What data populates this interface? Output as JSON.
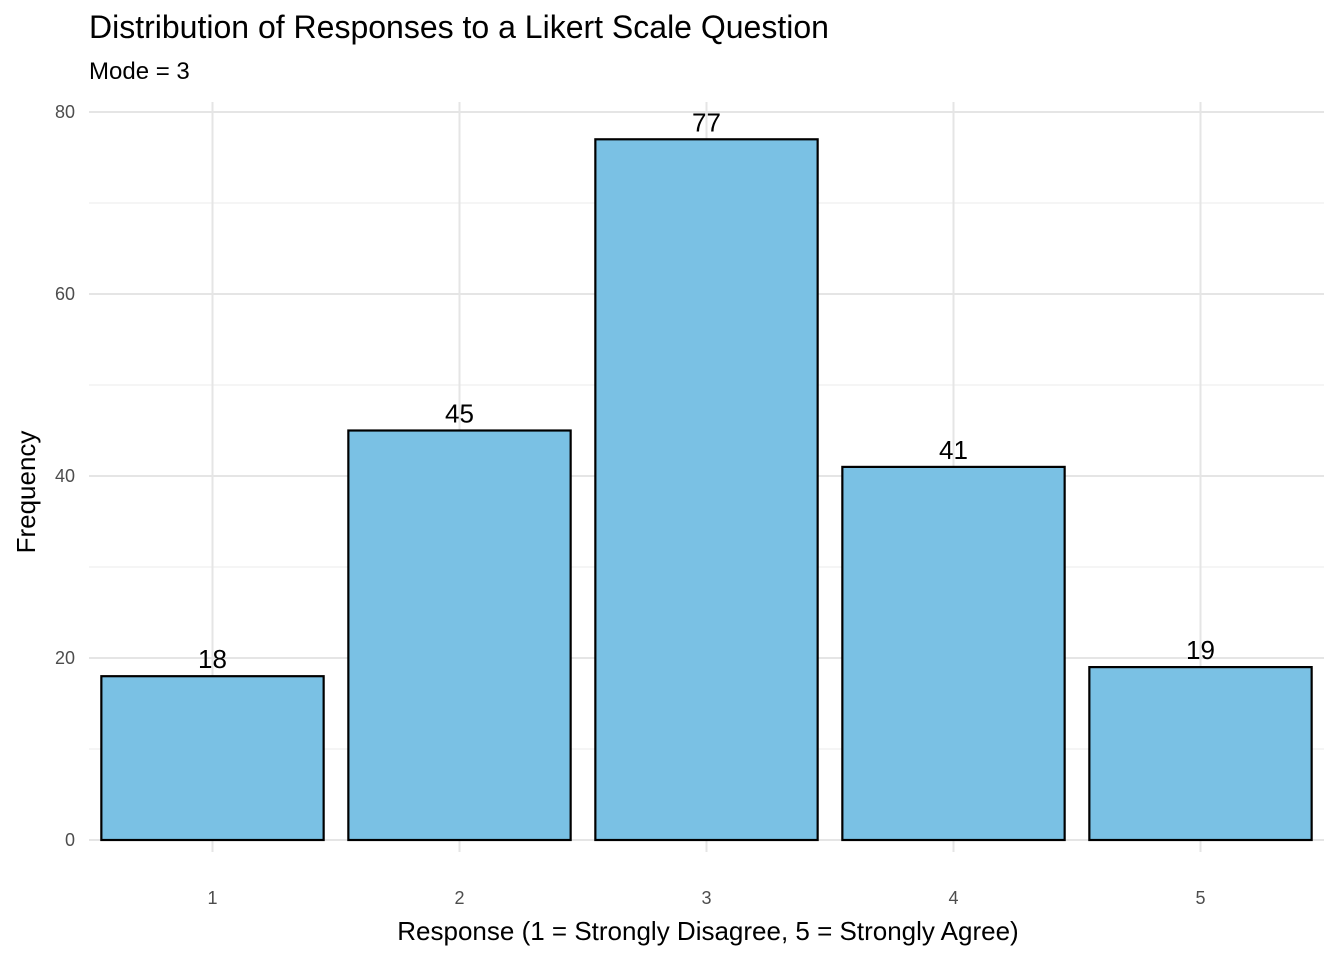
{
  "chart_data": {
    "type": "bar",
    "title": "Distribution of Responses to a Likert Scale Question",
    "subtitle": "Mode = 3",
    "xlabel": "Response (1 = Strongly Disagree, 5 = Strongly Agree)",
    "ylabel": "Frequency",
    "categories": [
      "1",
      "2",
      "3",
      "4",
      "5"
    ],
    "values": [
      18,
      45,
      77,
      41,
      19
    ],
    "ylim": [
      0,
      80
    ],
    "yticks": [
      "0",
      "20",
      "40",
      "60",
      "80"
    ],
    "grid": true,
    "legend": "none",
    "colors": {
      "bar_fill": "#7ac1e4",
      "bar_stroke": "#000000",
      "grid": "#e5e5e5"
    }
  }
}
